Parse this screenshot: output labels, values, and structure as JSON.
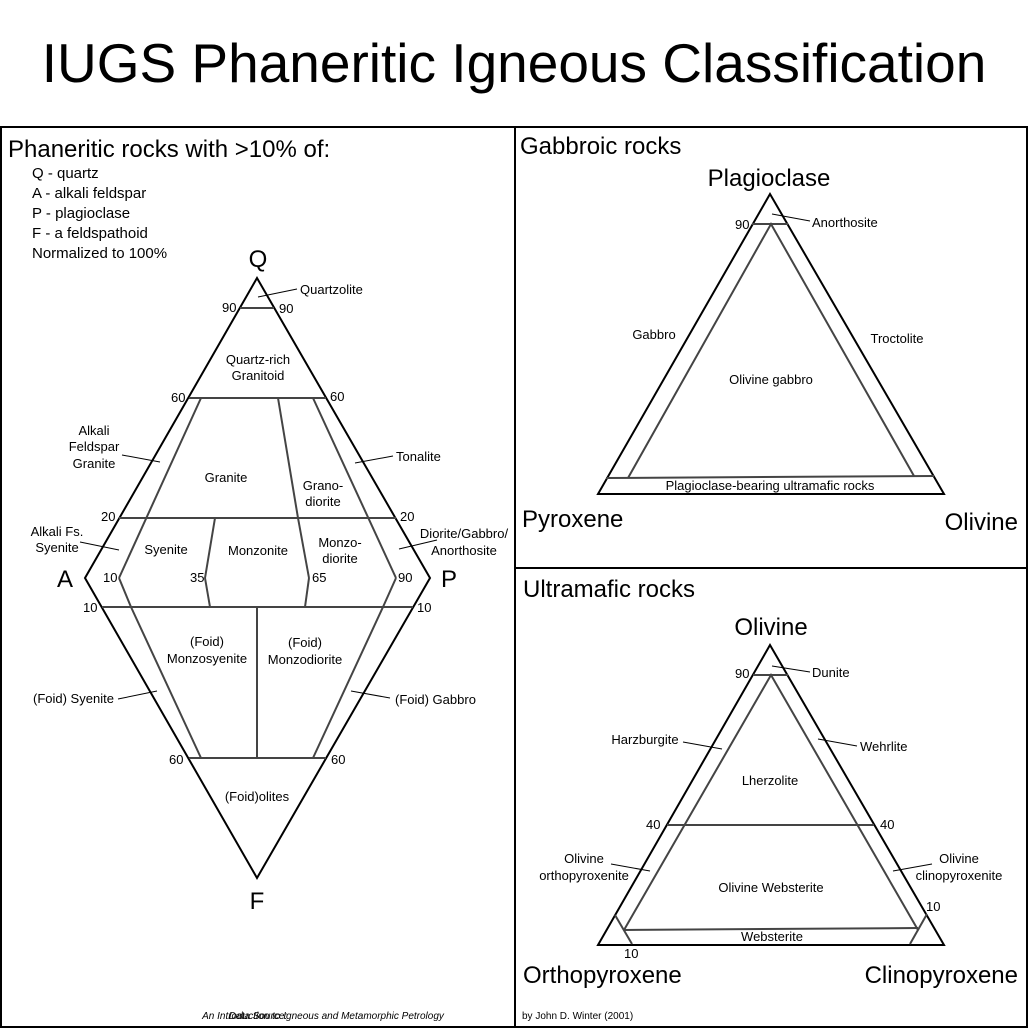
{
  "title": "IUGS Phaneritic Igneous Classification",
  "left": {
    "heading": "Phaneritic rocks with >10% of:",
    "legend": [
      "Q - quartz",
      "A - alkali feldspar",
      "P - plagioclase",
      "F - a feldspathoid",
      "Normalized to 100%"
    ],
    "vertices": {
      "q": "Q",
      "a": "A",
      "p": "P",
      "f": "F"
    },
    "ticks": {
      "q90l": "90",
      "q90r": "90",
      "q60l": "60",
      "q60r": "60",
      "q20l": "20",
      "q20r": "20",
      "m10": "10",
      "m35": "35",
      "m65": "65",
      "m90": "90",
      "f10l": "10",
      "f10r": "10",
      "f60l": "60",
      "f60r": "60"
    },
    "fields": {
      "quartzolite": "Quartzolite",
      "quartz_rich_1": "Quartz-rich",
      "quartz_rich_2": "Granitoid",
      "alkali_granite_1": "Alkali",
      "alkali_granite_2": "Feldspar",
      "alkali_granite_3": "Granite",
      "granite": "Granite",
      "granodiorite_1": "Grano-",
      "granodiorite_2": "diorite",
      "tonalite": "Tonalite",
      "alkali_syenite_1": "Alkali Fs.",
      "alkali_syenite_2": "Syenite",
      "syenite": "Syenite",
      "monzonite": "Monzonite",
      "monzodiorite_1": "Monzo-",
      "monzodiorite_2": "diorite",
      "diorite_1": "Diorite/Gabbro/",
      "diorite_2": "Anorthosite",
      "foid_monzosyenite_1": "(Foid)",
      "foid_monzosyenite_2": "Monzosyenite",
      "foid_monzodiorite_1": "(Foid)",
      "foid_monzodiorite_2": "Monzodiorite",
      "foid_syenite": "(Foid) Syenite",
      "foid_gabbro": "(Foid) Gabbro",
      "foidolites": "(Foid)olites"
    },
    "footer_a": "An Introduction to Igneous and Metamorphic Petrology",
    "footer_b": "Data Source: "
  },
  "gabbroic": {
    "heading": "Gabbroic rocks",
    "top": "Plagioclase",
    "left": "Pyroxene",
    "right": "Olivine",
    "tick90": "90",
    "fields": {
      "anorthosite": "Anorthosite",
      "gabbro": "Gabbro",
      "troctolite": "Troctolite",
      "olivine_gabbro": "Olivine gabbro",
      "ultramafic": "Plagioclase-bearing ultramafic rocks"
    }
  },
  "ultramafic": {
    "heading": "Ultramafic rocks",
    "top": "Olivine",
    "left": "Orthopyroxene",
    "right": "Clinopyroxene",
    "ticks": {
      "t90": "90",
      "t40l": "40",
      "t40r": "40",
      "t10r": "10",
      "t10b": "10"
    },
    "fields": {
      "dunite": "Dunite",
      "harzburgite": "Harzburgite",
      "wehrlite": "Wehrlite",
      "lherzolite": "Lherzolite",
      "ol_opx_1": "Olivine",
      "ol_opx_2": "orthopyroxenite",
      "ol_cpx_1": "Olivine",
      "ol_cpx_2": "clinopyroxenite",
      "ol_websterite": "Olivine Websterite",
      "websterite": "Websterite"
    },
    "credit": "by John D. Winter (2001)"
  }
}
